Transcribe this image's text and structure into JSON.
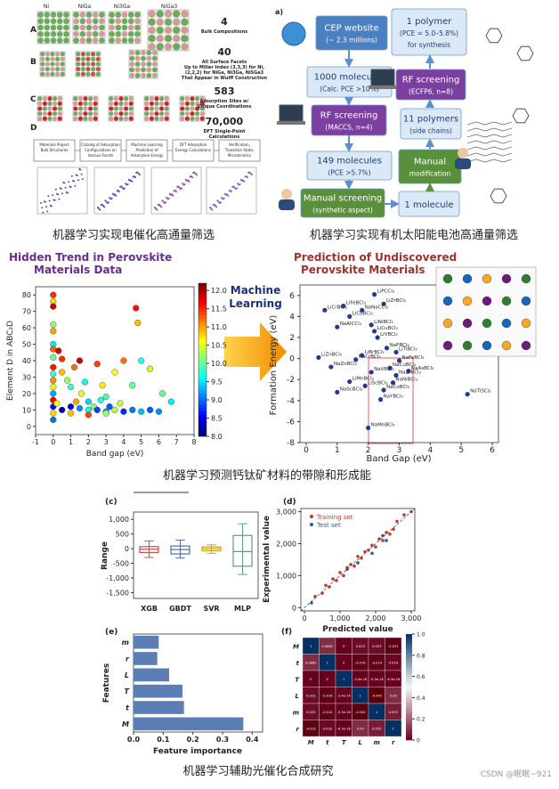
{
  "captions": [
    "机器学习实现电催化高通量筛选",
    "机器学习实现有机太阳能电池高通量筛选",
    "机器学习预测钙钛矿材料的带隙和形成能",
    "机器学习辅助光催化合成研究"
  ],
  "watermark": "CSDN @眠眠~921",
  "catalysis": {
    "compounds": [
      "Ni",
      "NiGa",
      "Ni3Ga",
      "NiGa3"
    ],
    "rows": [
      {
        "letter": "A",
        "count": "4",
        "desc": [
          "Bulk Compositions"
        ]
      },
      {
        "letter": "B",
        "count": "40",
        "desc": [
          "All Surface Facets",
          "Up to Miller Index (3,3,3) for Ni,",
          "(2,2,2) for NiGa, Ni3Ga, Ni5Ga3",
          "That Appear in Wulff Construction"
        ]
      },
      {
        "letter": "C",
        "count": "583",
        "desc": [
          "Adsorption Sites w/",
          "Unique Coordinations"
        ]
      },
      {
        "letter": "D",
        "count": "70,000",
        "desc": [
          "DFT Single-Point",
          "Calculations"
        ]
      }
    ],
    "workflow": [
      [
        "Materials Project",
        "Bulk Structures"
      ],
      [
        "Catalog of Adsorption",
        "Configurations on",
        "Various Facets"
      ],
      [
        "Machine Learning",
        "Prediction of",
        "Adsorption Energy"
      ],
      [
        "DFT Adsorption",
        "Energy Calculations"
      ],
      [
        "Verification,",
        "Transition State,",
        "Microkinetics"
      ]
    ]
  },
  "solar": {
    "label": "a)",
    "boxes": [
      [
        "CEP website",
        "(~ 2.3 millions)"
      ],
      [
        "1000 molecules",
        "(Calc. PCE >10%)"
      ],
      [
        "RF screening",
        "(MACCS, n=4)"
      ],
      [
        "149 molecules",
        "(PCE >5.7%)"
      ],
      [
        "Manual screening",
        "(synthetic aspect)"
      ],
      [
        "1 molecule"
      ],
      [
        "Manual",
        "modification"
      ],
      [
        "11 polymers",
        "(side chains)"
      ],
      [
        "RF screening",
        "(ECFP6, n=8)"
      ],
      [
        "1 polymer",
        "(PCE = 5.0–5.8%)",
        "for synthesis"
      ]
    ]
  },
  "perovskite": {
    "left": {
      "title": [
        "Hidden Trend in Perovskite",
        "Materials Data"
      ],
      "xlabel": "Band gap (eV)",
      "ylabel": "Element D in ABC₂D",
      "xlim": [
        -1,
        8
      ],
      "ylim": [
        -5,
        85
      ],
      "xticks": [
        -1,
        0,
        1,
        2,
        3,
        4,
        5,
        6,
        7,
        8
      ],
      "yticks": [
        0,
        10,
        20,
        30,
        40,
        50,
        60,
        70,
        80
      ],
      "clim": [
        8,
        12.2
      ],
      "cticks": [
        {
          "value": 8,
          "label": "8.0"
        },
        8.5,
        {
          "value": 9,
          "label": "9.0"
        },
        9.5,
        {
          "value": 10,
          "label": "10.0"
        },
        10.5,
        {
          "value": 11,
          "label": "11.0"
        },
        11.5,
        {
          "value": 12,
          "label": "12.0"
        }
      ],
      "x": [
        0,
        0,
        0,
        0,
        0,
        0,
        0,
        0,
        0,
        0,
        0,
        0,
        0,
        0,
        0,
        0,
        0,
        0.3,
        0.5,
        0.5,
        0.8,
        1,
        1.2,
        1.5,
        1.6,
        1.8,
        2,
        2.3,
        2.5,
        2.8,
        3,
        3.2,
        3.5,
        4,
        4.5,
        4.7,
        4.8,
        5,
        5.5,
        6.2,
        6.7,
        1,
        1.5,
        2,
        2.5,
        3,
        3.5,
        4,
        4.5,
        5,
        5.5,
        6,
        0.5,
        1,
        2,
        3,
        0.2,
        1.3,
        2.7,
        3.8
      ],
      "y": [
        80,
        76,
        73,
        62,
        58,
        50,
        47,
        42,
        36,
        32,
        28,
        24,
        20,
        16,
        12,
        8,
        4,
        46,
        33,
        41,
        28,
        24,
        36,
        40,
        20,
        27,
        15,
        12,
        38,
        25,
        18,
        12,
        33,
        40,
        25,
        72,
        63,
        40,
        35,
        20,
        15,
        12,
        11,
        10,
        10,
        9,
        10,
        9,
        10,
        9,
        10,
        9,
        10,
        8,
        7,
        8,
        14,
        15,
        16,
        14
      ],
      "c": [
        11.5,
        10.8,
        11.9,
        10.2,
        11,
        9.5,
        11.3,
        10,
        11.6,
        9.8,
        11.1,
        10.5,
        9.2,
        11.7,
        8.6,
        10.8,
        9,
        11.8,
        10.9,
        11.5,
        10.2,
        9.8,
        11.2,
        11.9,
        10.5,
        9.6,
        9.4,
        10.1,
        11.4,
        10.7,
        9.9,
        8.9,
        10.6,
        11.2,
        10,
        11.6,
        10.9,
        9.7,
        10.4,
        10,
        9.5,
        8.4,
        9.1,
        9.6,
        8.8,
        9.2,
        10.3,
        8.7,
        9,
        9.3,
        8.9,
        9.1,
        8.2,
        10.9,
        11.4,
        10.2,
        10.6,
        11,
        9.7,
        10.4
      ]
    },
    "ml": [
      "Machine",
      "Learning"
    ],
    "right": {
      "title": [
        "Prediction of Undiscovered",
        "Perovskite Materials"
      ],
      "xlabel": "Band Gap (eV)",
      "ylabel": "Formation Energy (eV)",
      "xlim": [
        -0.2,
        6.2
      ],
      "ylim": [
        -8,
        7
      ],
      "xticks": [
        0,
        1,
        2,
        3,
        4,
        5,
        6
      ],
      "yticks": [
        -8,
        -6,
        -4,
        -2,
        0,
        2,
        4,
        6
      ],
      "x": [
        2.2,
        1.2,
        2.5,
        0.6,
        1.8,
        1.4,
        1.0,
        2.1,
        2.2,
        2.3,
        2.6,
        2.9,
        0.4,
        1.8,
        1.6,
        3.0,
        0.8,
        2.7,
        2.1,
        3.3,
        2.9,
        1.4,
        2.8,
        1.9,
        1.0,
        2.5,
        2.4,
        5.2,
        2.0
      ],
      "y": [
        6.1,
        5.0,
        5.2,
        4.6,
        4.6,
        4.0,
        3.0,
        3.2,
        2.6,
        2.0,
        1.0,
        0.6,
        0.1,
        0.3,
        -0.1,
        -0.2,
        -0.8,
        -0.9,
        -1.3,
        -1.2,
        -1.6,
        -2.2,
        -2.3,
        -2.6,
        -3.2,
        -3.0,
        -3.9,
        -3.4,
        -6.6
      ],
      "labels": [
        "LiPCCl₃",
        "LiFeBCl₃",
        "LiZrBCl₃",
        "LiCrBCl₃",
        "NaNaCCl₃",
        "LiCoBCl₃",
        "NaAlCCl₃",
        "LiNiBCl₃",
        "LiCuBCl₃",
        "LiVBCl₃",
        "NaPBCl₃",
        "LiTiBCl₃",
        "LiZnBCl₃",
        "LiBrBCl₃",
        "NaCrBCl₃",
        "NaFeBCl₃",
        "NaZnBCl₃",
        "NaCuBCl₃",
        "NaVBCl₃",
        "NaAsBCl₃",
        "NaZrBCl₃",
        "LiMnBCl₃",
        "NaNiBCl₃",
        "LiScBCl₃",
        "NaScBCl₃",
        "NaCoBCl₃",
        "NaYBCl₃",
        "NaTiSCl₃",
        "NaMnBCl₃"
      ]
    }
  },
  "photocatalysis": {
    "box": {
      "panel": "(c)",
      "type": "box",
      "ylabel": "Range",
      "categories": [
        "XGB",
        "GBDT",
        "SVR",
        "MLP"
      ],
      "colors": [
        "#c0504d",
        "#4f6fa8",
        "#d4a017",
        "#5aa080"
      ],
      "ylim": [
        -1700,
        1250
      ],
      "yticks": [
        {
          "value": 1000,
          "label": "1,000"
        },
        500,
        0,
        -500,
        {
          "value": -1000,
          "label": "-1,000"
        },
        {
          "value": -1500,
          "label": "-1,500"
        }
      ],
      "whisker_low": [
        -300,
        -320,
        -160,
        -880
      ],
      "q1": [
        -130,
        -180,
        -70,
        -600
      ],
      "median": [
        -20,
        -30,
        0,
        -100
      ],
      "q3": [
        70,
        90,
        60,
        450
      ],
      "whisker_high": [
        260,
        290,
        130,
        850
      ]
    },
    "scatter": {
      "panel": "(d)",
      "type": "scatter",
      "xlabel": "Predicted value",
      "ylabel": "Experimental value",
      "xlim": [
        -100,
        3100
      ],
      "ylim": [
        -100,
        3100
      ],
      "xticks": [
        0,
        {
          "value": 1000,
          "label": "1,000"
        },
        {
          "value": 2000,
          "label": "2,000"
        },
        {
          "value": 3000,
          "label": "3,000"
        }
      ],
      "yticks": [
        0,
        {
          "value": 1000,
          "label": "1,000"
        },
        {
          "value": 2000,
          "label": "2,000"
        },
        {
          "value": 3000,
          "label": "3,000"
        }
      ],
      "series": [
        {
          "name": "Training set",
          "color": "#c0392b",
          "x": [
            300,
            500,
            600,
            700,
            800,
            900,
            1000,
            1100,
            1200,
            1300,
            1400,
            1500,
            1600,
            1700,
            1800,
            1900,
            2000,
            2100,
            2200,
            2300,
            2400,
            2500,
            2600,
            2800,
            3000
          ],
          "values": [
            350,
            450,
            700,
            650,
            900,
            850,
            1100,
            1000,
            1250,
            1350,
            1300,
            1600,
            1550,
            1750,
            1800,
            1950,
            1900,
            2150,
            2100,
            2350,
            2300,
            2450,
            2700,
            2900,
            3000
          ]
        },
        {
          "name": "Test set",
          "color": "#2c5aa0",
          "x": [
            200,
            1200,
            1500,
            1900,
            2200,
            2300
          ],
          "values": [
            150,
            1200,
            1400,
            1700,
            2250,
            2100
          ]
        }
      ]
    },
    "bars": {
      "panel": "(e)",
      "type": "barh",
      "xlabel": "Feature importance",
      "ylabel": "Features",
      "color": "#5b7fb5",
      "categories": [
        "m",
        "r",
        "L",
        "T",
        "t",
        "M"
      ],
      "values": [
        0.085,
        0.08,
        0.12,
        0.165,
        0.17,
        0.37
      ],
      "xlim": [
        0,
        0.435
      ],
      "xticks": [
        {
          "value": 0,
          "label": "0.0"
        },
        0.1,
        0.2,
        0.3,
        0.4
      ]
    },
    "heatmap": {
      "panel": "(f)",
      "type": "heatmap",
      "labels": [
        "M",
        "t",
        "T",
        "L",
        "m",
        "r"
      ],
      "values": [
        [
          1,
          0.0882,
          0,
          0.023,
          0.023,
          -0.031
        ],
        [
          0.0882,
          1,
          0,
          -0.016,
          -0.014,
          0.016
        ],
        [
          0,
          0,
          1,
          -3.4e-16,
          -5.3e-16,
          -6.3e-16
        ],
        [
          0.023,
          -0.016,
          -3.4e-16,
          1,
          -0.045,
          0.09
        ],
        [
          0.023,
          -0.014,
          -5.3e-16,
          -0.045,
          1,
          0.055
        ],
        [
          -0.031,
          0.016,
          -6.3e-16,
          0.09,
          0.055,
          1
        ]
      ],
      "clim": [
        0,
        1
      ],
      "cticks": [
        0,
        0.2,
        0.4,
        0.6,
        0.8,
        {
          "value": 1,
          "label": "1.0"
        }
      ]
    }
  }
}
